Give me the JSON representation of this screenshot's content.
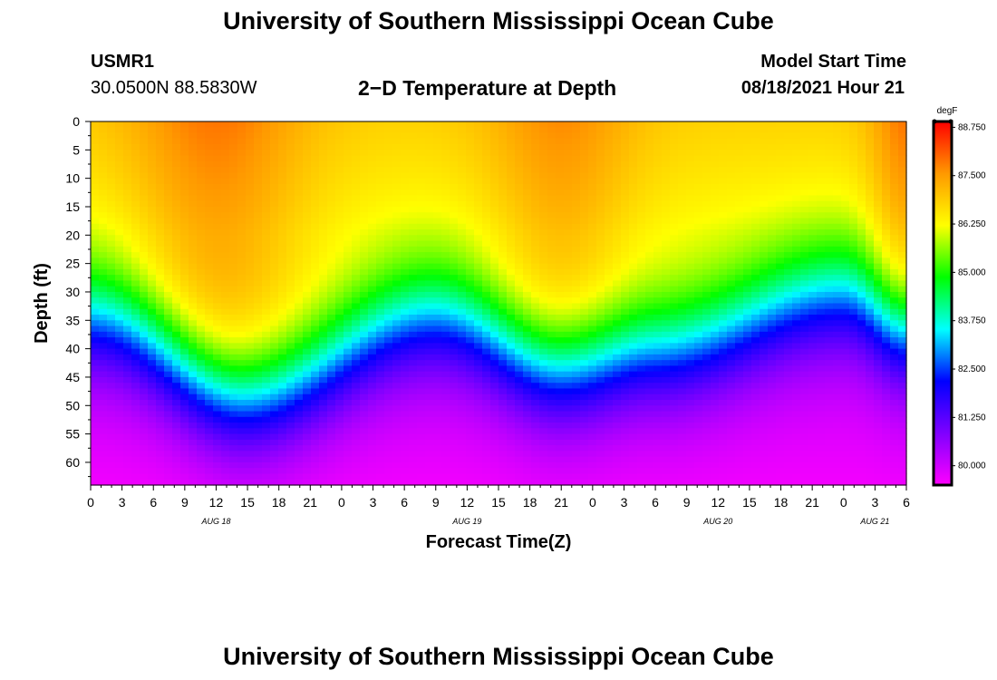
{
  "page": {
    "title_top": "University of Southern Mississippi Ocean Cube",
    "title_bottom": "University of Southern Mississippi Ocean Cube"
  },
  "header": {
    "station": "USMR1",
    "location": "30.0500N  88.5830W",
    "chart_title": "2−D Temperature at Depth",
    "start_label": "Model Start Time",
    "start_value": "08/18/2021 Hour 21"
  },
  "colors": {
    "scale": [
      "#ff00ff",
      "#7f00ff",
      "#0000ff",
      "#00ffff",
      "#00ff00",
      "#ffff00",
      "#ff9900",
      "#ff0000"
    ]
  },
  "chart_data": {
    "type": "heatmap",
    "title": "2−D Temperature at Depth",
    "xlabel": "Forecast Time(Z)",
    "ylabel": "Depth (ft)",
    "units": "degF",
    "x_ticks": [
      "0",
      "3",
      "6",
      "9",
      "12",
      "15",
      "18",
      "21",
      "0",
      "3",
      "6",
      "9",
      "12",
      "15",
      "18",
      "21",
      "0",
      "3",
      "6",
      "9",
      "12",
      "15",
      "18",
      "21",
      "0",
      "3",
      "6"
    ],
    "x_hours": [
      0,
      78
    ],
    "date_labels": [
      {
        "text": "AUG 18",
        "hour": 12
      },
      {
        "text": "AUG 19",
        "hour": 36
      },
      {
        "text": "AUG 20",
        "hour": 60
      },
      {
        "text": "AUG 21",
        "hour": 75
      }
    ],
    "y_ticks": [
      "0",
      "5",
      "10",
      "15",
      "20",
      "25",
      "30",
      "35",
      "40",
      "45",
      "50",
      "55",
      "60"
    ],
    "y_range": [
      0,
      64
    ],
    "colorbar": {
      "label": "degF",
      "min": 79.5,
      "max": 88.9,
      "ticks": [
        "88.750",
        "87.500",
        "86.250",
        "85.000",
        "83.750",
        "82.500",
        "81.250",
        "80.000"
      ],
      "tick_values": [
        88.75,
        87.5,
        86.25,
        85.0,
        83.75,
        82.5,
        81.25,
        80.0
      ]
    },
    "summary": {
      "surface_temp_range": [
        86.8,
        88.75
      ],
      "bottom_temp_range": [
        79.6,
        80.6
      ],
      "thermocline_depth_ft": {
        "hours": [
          0,
          15,
          33,
          45,
          54,
          72,
          78
        ],
        "depth": [
          34,
          48,
          34,
          43,
          40,
          30,
          36
        ]
      }
    }
  }
}
